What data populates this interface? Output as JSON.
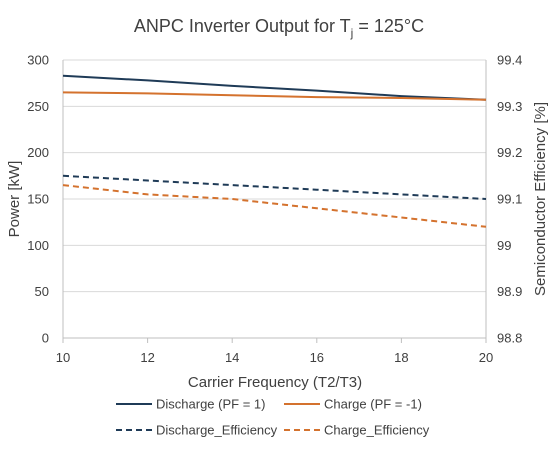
{
  "chart_data": {
    "type": "line",
    "title": {
      "prefix": "ANPC Inverter Output for T",
      "subscript": "j",
      "suffix": " = 125°C"
    },
    "xlabel": "Carrier Frequency (T2/T3)",
    "ylabel_left": "Power [kW]",
    "ylabel_right": "Semiconductor Efficiency [%]",
    "x": [
      10,
      12,
      14,
      16,
      18,
      20
    ],
    "xticks": [
      "10",
      "12",
      "14",
      "16",
      "18",
      "20"
    ],
    "xlim": [
      10,
      20
    ],
    "ylim_left": [
      0,
      300
    ],
    "yticks_left": [
      "0",
      "50",
      "100",
      "150",
      "200",
      "250",
      "300"
    ],
    "ylim_right": [
      98.8,
      99.4
    ],
    "yticks_right": [
      "98.8",
      "98.9",
      "99",
      "99.1",
      "99.2",
      "99.3",
      "99.4"
    ],
    "grid": "horizontal",
    "legend_placement": "bottom",
    "series": [
      {
        "name": "Discharge (PF = 1)",
        "axis": "left",
        "style": "solid",
        "color": "#1f3b57",
        "values": [
          283,
          278,
          272,
          267,
          261,
          257
        ]
      },
      {
        "name": "Charge (PF = -1)",
        "axis": "left",
        "style": "solid",
        "color": "#d4722e",
        "values": [
          265,
          264,
          262,
          260,
          259,
          257
        ]
      },
      {
        "name": "Discharge_Efficiency",
        "axis": "right",
        "style": "dashed",
        "color": "#1f3b57",
        "values": [
          99.15,
          99.14,
          99.13,
          99.12,
          99.11,
          99.1
        ]
      },
      {
        "name": "Charge_Efficiency",
        "axis": "right",
        "style": "dashed",
        "color": "#d4722e",
        "values": [
          99.13,
          99.11,
          99.1,
          99.08,
          99.06,
          99.04
        ]
      }
    ]
  }
}
